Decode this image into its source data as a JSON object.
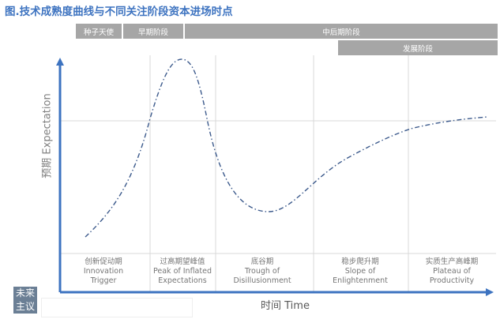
{
  "title": "图.技术成熟度曲线与不同关注阶段资本进场时点",
  "bands": {
    "angel": "种子天使",
    "early": "早期阶段",
    "mid_late": "中后期阶段",
    "growth": "发展阶段"
  },
  "axes": {
    "ylabel": "预期 Expectation",
    "xlabel": "时间 Time"
  },
  "stages": [
    {
      "zh": "创新促动期",
      "en1": "Innovation",
      "en2": "Trigger"
    },
    {
      "zh": "过高期望峰值",
      "en1": "Peak of Inflated",
      "en2": "Expectations"
    },
    {
      "zh": "底谷期",
      "en1": "Trough of",
      "en2": "Disillusionment"
    },
    {
      "zh": "稳步爬升期",
      "en1": "Slope of",
      "en2": "Enlightenment"
    },
    {
      "zh": "实质生产高峰期",
      "en1": "Plateau of",
      "en2": "Productivity"
    }
  ],
  "watermark": {
    "line1": "未来",
    "line2": "主议"
  },
  "colors": {
    "title": "#3d73c0",
    "axis": "#3d73c0",
    "curve": "#3c5a8c",
    "band": "#a6a6a6",
    "grid": "#d9d9d9"
  }
}
